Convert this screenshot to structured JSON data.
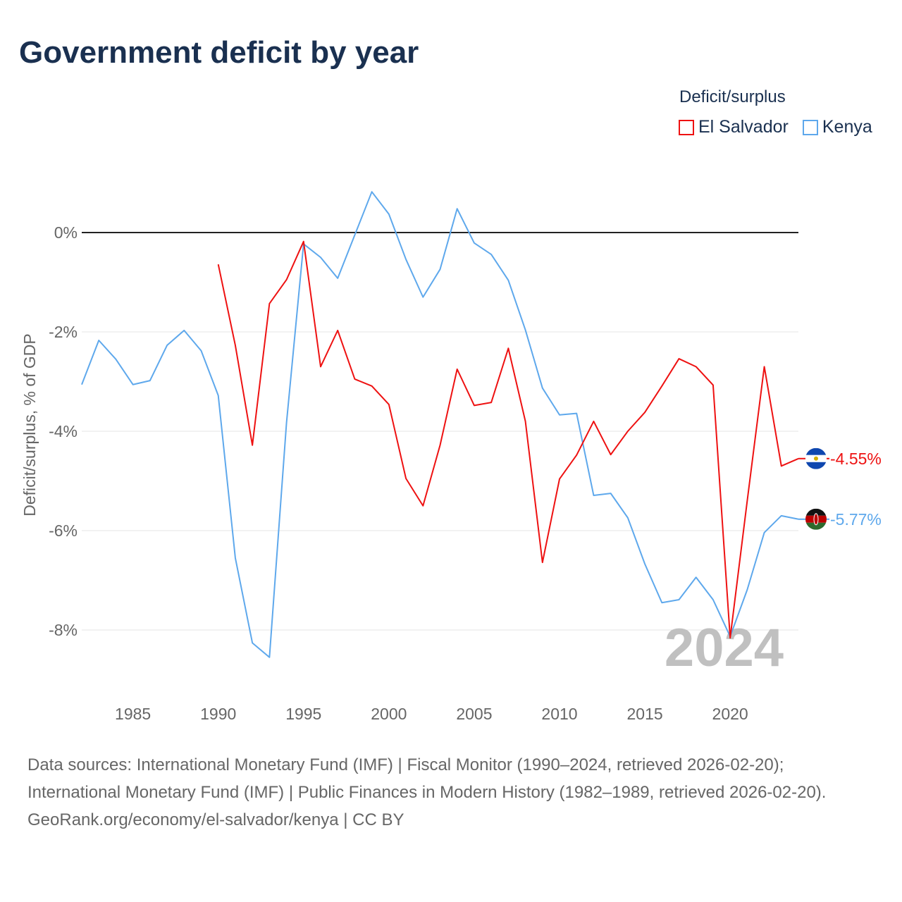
{
  "chart_data": {
    "type": "line",
    "title": "Government deficit by year",
    "ylabel": "Deficit/surplus, % of GDP",
    "xlabel": "",
    "xlim": [
      1982,
      2024
    ],
    "ylim": [
      -9.3,
      1.3
    ],
    "x_ticks": [
      1985,
      1990,
      1995,
      2000,
      2005,
      2010,
      2015,
      2020
    ],
    "y_ticks": [
      0,
      -2,
      -4,
      -6,
      -8
    ],
    "y_tick_labels": [
      "0%",
      "-2%",
      "-4%",
      "-6%",
      "-8%"
    ],
    "grid": true,
    "legend_title": "Deficit/surplus",
    "legend_position": "top-right",
    "year_watermark": "2024",
    "series": [
      {
        "name": "El Salvador",
        "color": "#ee1111",
        "end_label": "-4.55%",
        "x": [
          1990,
          1991,
          1992,
          1993,
          1994,
          1995,
          1996,
          1997,
          1998,
          1999,
          2000,
          2001,
          2002,
          2003,
          2004,
          2005,
          2006,
          2007,
          2008,
          2009,
          2010,
          2011,
          2012,
          2013,
          2014,
          2015,
          2016,
          2017,
          2018,
          2019,
          2020,
          2021,
          2022,
          2023,
          2024
        ],
        "values": [
          -0.64,
          -2.27,
          -4.28,
          -1.43,
          -0.95,
          -0.18,
          -2.7,
          -1.97,
          -2.95,
          -3.09,
          -3.46,
          -4.95,
          -5.5,
          -4.28,
          -2.75,
          -3.48,
          -3.42,
          -2.33,
          -3.8,
          -6.64,
          -4.96,
          -4.48,
          -3.8,
          -4.47,
          -4.0,
          -3.62,
          -3.09,
          -2.54,
          -2.7,
          -3.07,
          -8.16,
          -5.4,
          -2.7,
          -4.7,
          -4.55
        ]
      },
      {
        "name": "Kenya",
        "color": "#5ea8ec",
        "end_label": "-5.77%",
        "x": [
          1982,
          1983,
          1984,
          1985,
          1986,
          1987,
          1988,
          1989,
          1990,
          1991,
          1992,
          1993,
          1994,
          1995,
          1996,
          1997,
          1998,
          1999,
          2000,
          2001,
          2002,
          2003,
          2004,
          2005,
          2006,
          2007,
          2008,
          2009,
          2010,
          2011,
          2012,
          2013,
          2014,
          2015,
          2016,
          2017,
          2018,
          2019,
          2020,
          2021,
          2022,
          2023,
          2024
        ],
        "values": [
          -3.06,
          -2.17,
          -2.55,
          -3.06,
          -2.98,
          -2.27,
          -1.97,
          -2.38,
          -3.28,
          -6.55,
          -8.26,
          -8.55,
          -3.83,
          -0.23,
          -0.5,
          -0.92,
          -0.05,
          0.82,
          0.37,
          -0.54,
          -1.3,
          -0.74,
          0.48,
          -0.21,
          -0.44,
          -0.96,
          -1.96,
          -3.13,
          -3.67,
          -3.64,
          -5.29,
          -5.25,
          -5.74,
          -6.67,
          -7.45,
          -7.39,
          -6.94,
          -7.39,
          -8.13,
          -7.19,
          -6.04,
          -5.7,
          -5.77
        ]
      }
    ]
  },
  "footer": {
    "sources": "Data sources: International Monetary Fund (IMF) | Fiscal Monitor (1990–2024, retrieved 2026-02-20); International Monetary Fund (IMF) | Public Finances in Modern History (1982–1989, retrieved 2026-02-20).",
    "credit": "GeoRank.org/economy/el-salvador/kenya | CC BY"
  }
}
